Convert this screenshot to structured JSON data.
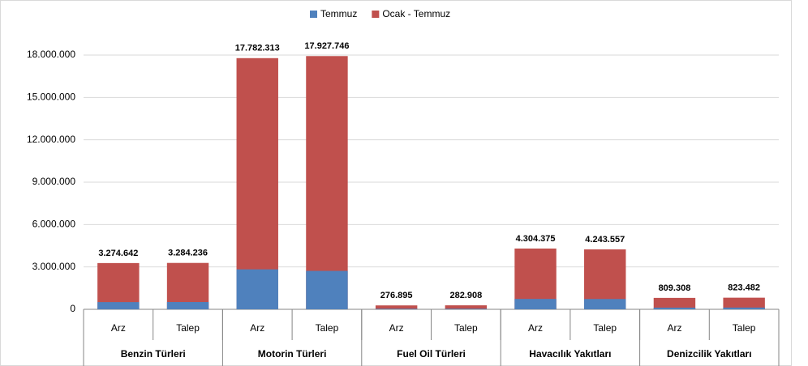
{
  "chart_data": {
    "type": "bar",
    "categories": [
      "Arz",
      "Talep",
      "Arz",
      "Talep",
      "Arz",
      "Talep",
      "Arz",
      "Talep",
      "Arz",
      "Talep"
    ],
    "groups": [
      "Benzin Türleri",
      "Motorin Türleri",
      "Fuel Oil Türleri",
      "Havacılık Yakıtları",
      "Denizcilik Yakıtları"
    ],
    "overlap": true,
    "series": [
      {
        "name": "Ocak - Temmuz",
        "color": "#c0504d",
        "values": [
          3274642,
          3284236,
          17782313,
          17927746,
          276895,
          282908,
          4304375,
          4243557,
          809308,
          823482
        ],
        "value_labels": [
          "3.274.642",
          "3.284.236",
          "17.782.313",
          "17.927.746",
          "276.895",
          "282.908",
          "4.304.375",
          "4.243.557",
          "809.308",
          "823.482"
        ]
      },
      {
        "name": "Temmuz",
        "color": "#4f81bd",
        "values": [
          510000,
          515000,
          2830000,
          2720000,
          40000,
          42000,
          735000,
          730000,
          120000,
          125000
        ]
      }
    ],
    "legend_order": [
      1,
      0
    ],
    "ylim": [
      0,
      18000000
    ],
    "yticks": [
      {
        "value": 0,
        "label": "0"
      },
      {
        "value": 3000000,
        "label": "3.000.000"
      },
      {
        "value": 6000000,
        "label": "6.000.000"
      },
      {
        "value": 9000000,
        "label": "9.000.000"
      },
      {
        "value": 12000000,
        "label": "12.000.000"
      },
      {
        "value": 15000000,
        "label": "15.000.000"
      },
      {
        "value": 18000000,
        "label": "18.000.000"
      }
    ],
    "grid": true
  }
}
